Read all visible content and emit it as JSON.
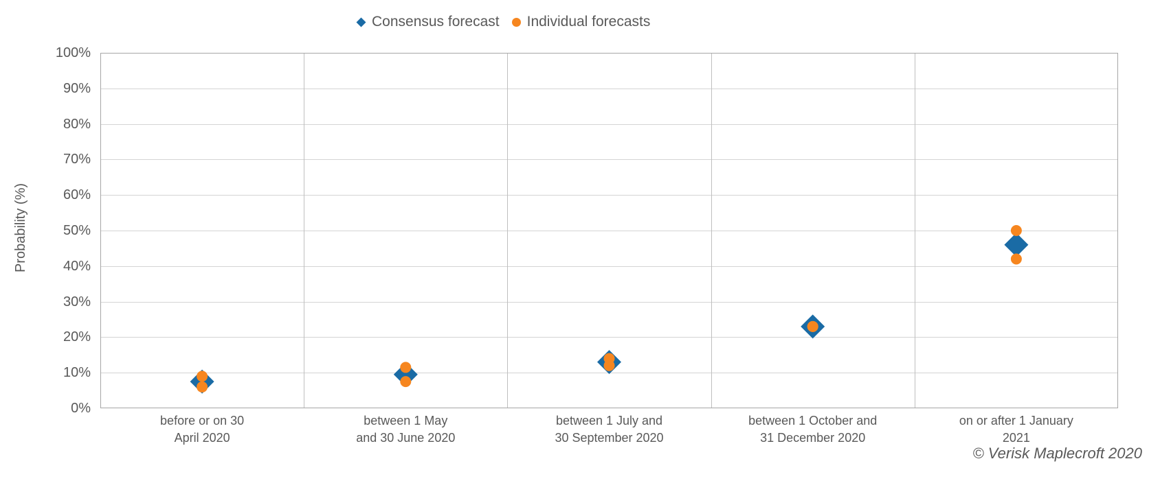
{
  "legend": {
    "items": [
      {
        "label": "Consensus forecast",
        "marker": "diamond",
        "color": "#1A6BA5"
      },
      {
        "label": "Individual forecasts",
        "marker": "circle",
        "color": "#F6861F"
      }
    ]
  },
  "y_axis_title": "Probability (%)",
  "copyright": "© Verisk Maplecroft 2020",
  "colors": {
    "consensus": "#1A6BA5",
    "individual": "#F6861F",
    "axis_text": "#595959",
    "gridline": "#D4D4D4",
    "separator": "#BFBFBF",
    "border": "#A6A6A6"
  },
  "chart_data": {
    "type": "scatter",
    "title": "",
    "xlabel": "",
    "ylabel": "Probability (%)",
    "ylim": [
      0,
      100
    ],
    "ytick_step": 10,
    "ytick_suffix": "%",
    "grid": true,
    "legend_position": "top",
    "categories": [
      "before or on 30\nApril 2020",
      "between 1 May\nand 30 June 2020",
      "between 1 July and\n30 September 2020",
      "between 1 October and\n31 December 2020",
      "on or after 1 January\n2021"
    ],
    "series": [
      {
        "name": "Consensus forecast",
        "marker": "diamond",
        "color": "#1A6BA5",
        "values": [
          7.5,
          9.5,
          13,
          23,
          46
        ]
      },
      {
        "name": "Individual forecasts",
        "marker": "circle",
        "color": "#F6861F",
        "values": [
          [
            9,
            6
          ],
          [
            11.5,
            7.5
          ],
          [
            14,
            12
          ],
          [
            23,
            23
          ],
          [
            50,
            42
          ]
        ]
      }
    ]
  }
}
